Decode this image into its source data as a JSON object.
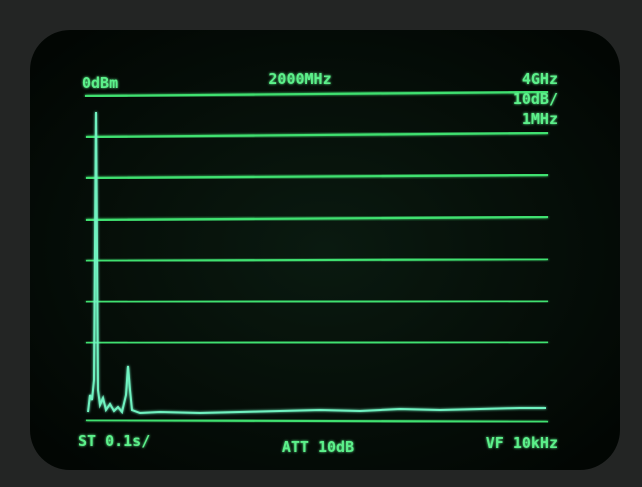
{
  "screen": {
    "reference_level": "0dBm",
    "center_frequency": "2000MHz",
    "span": "4GHz",
    "scale": "10dB/",
    "resolution_bandwidth": "1MHz",
    "sweep_time": "ST 0.1s/",
    "attenuation": "ATT 10dB",
    "video_filter": "VF 10kHz"
  }
}
